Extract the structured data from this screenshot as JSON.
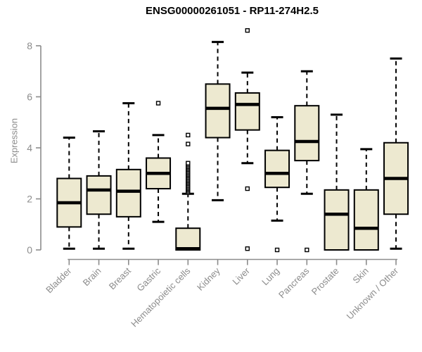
{
  "title": "ENSG00000261051 - RP11-274H2.5",
  "chart_data": {
    "type": "boxplot",
    "title": "ENSG00000261051 - RP11-274H2.5",
    "xlabel": "",
    "ylabel": "Expression",
    "ylim": [
      0,
      8.7
    ],
    "yticks": [
      0,
      2,
      4,
      6,
      8
    ],
    "grid": false,
    "legend": "none",
    "categories": [
      "Bladder",
      "Brain",
      "Breast",
      "Gastric",
      "Hematopoietic cells",
      "Kidney",
      "Liver",
      "Lung",
      "Pancreas",
      "Prostate",
      "Skin",
      "Unknown / Other"
    ],
    "boxes": [
      {
        "category": "Bladder",
        "whisker_low": 0.05,
        "q1": 0.9,
        "median": 1.85,
        "q3": 2.8,
        "whisker_high": 4.4,
        "outliers": []
      },
      {
        "category": "Brain",
        "whisker_low": 0.05,
        "q1": 1.4,
        "median": 2.35,
        "q3": 2.9,
        "whisker_high": 4.65,
        "outliers": []
      },
      {
        "category": "Breast",
        "whisker_low": 0.05,
        "q1": 1.3,
        "median": 2.3,
        "q3": 3.15,
        "whisker_high": 5.75,
        "outliers": []
      },
      {
        "category": "Gastric",
        "whisker_low": 1.1,
        "q1": 2.4,
        "median": 3.0,
        "q3": 3.6,
        "whisker_high": 4.5,
        "outliers": [
          5.75
        ]
      },
      {
        "category": "Hematopoietic cells",
        "whisker_low": 0.0,
        "q1": 0.0,
        "median": 0.05,
        "q3": 0.85,
        "whisker_high": 2.2,
        "outliers": [
          2.25,
          2.3,
          2.35,
          2.4,
          2.45,
          2.5,
          2.55,
          2.6,
          2.65,
          2.7,
          2.75,
          2.8,
          2.85,
          2.9,
          2.95,
          3.0,
          3.05,
          3.1,
          3.15,
          3.2,
          3.25,
          3.3,
          3.35,
          3.4,
          4.15,
          4.5
        ]
      },
      {
        "category": "Kidney",
        "whisker_low": 1.95,
        "q1": 4.4,
        "median": 5.55,
        "q3": 6.5,
        "whisker_high": 8.15,
        "outliers": []
      },
      {
        "category": "Liver",
        "whisker_low": 3.4,
        "q1": 4.7,
        "median": 5.7,
        "q3": 6.15,
        "whisker_high": 6.95,
        "outliers": [
          8.6,
          2.4,
          0.05
        ]
      },
      {
        "category": "Lung",
        "whisker_low": 1.15,
        "q1": 2.45,
        "median": 3.0,
        "q3": 3.9,
        "whisker_high": 5.2,
        "outliers": [
          0.0
        ]
      },
      {
        "category": "Pancreas",
        "whisker_low": 2.2,
        "q1": 3.5,
        "median": 4.25,
        "q3": 5.65,
        "whisker_high": 7.0,
        "outliers": [
          0.0
        ]
      },
      {
        "category": "Prostate",
        "whisker_low": 0.0,
        "q1": 0.0,
        "median": 1.4,
        "q3": 2.35,
        "whisker_high": 5.3,
        "outliers": []
      },
      {
        "category": "Skin",
        "whisker_low": 0.0,
        "q1": 0.0,
        "median": 0.85,
        "q3": 2.35,
        "whisker_high": 3.95,
        "outliers": []
      },
      {
        "category": "Unknown / Other",
        "whisker_low": 0.05,
        "q1": 1.4,
        "median": 2.8,
        "q3": 4.2,
        "whisker_high": 7.5,
        "outliers": []
      }
    ],
    "colors": {
      "box_fill": "#EDE9D0",
      "box_border": "#000000",
      "median": "#000000",
      "whisker": "#000000",
      "outlier_stroke": "#000000",
      "axis": "#8c8c8c",
      "tick_label": "#8c8c8c",
      "title": "#000000",
      "background": "#ffffff"
    }
  }
}
